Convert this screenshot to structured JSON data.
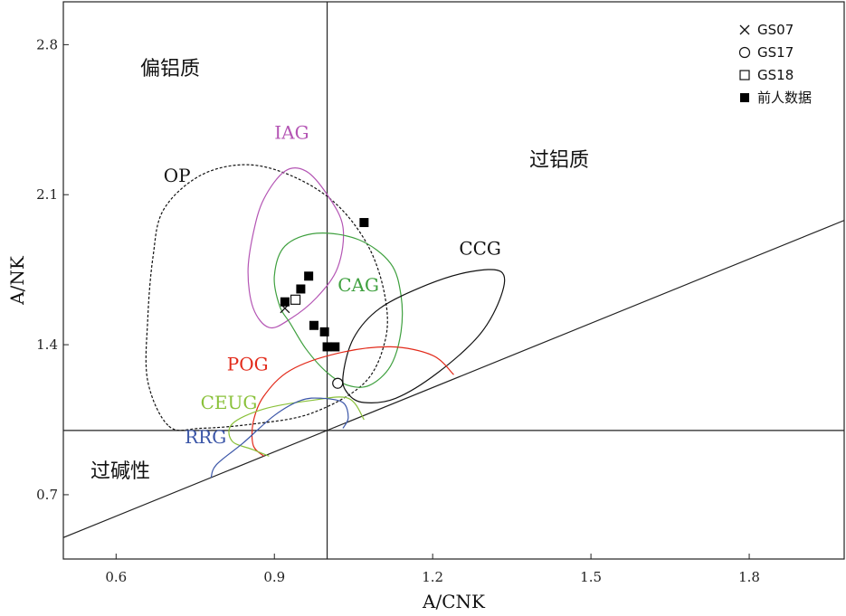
{
  "chart_data": {
    "type": "scatter",
    "title": "",
    "xlabel": "A/CNK",
    "ylabel": "A/NK",
    "xlim": [
      0.5,
      1.98
    ],
    "ylim": [
      0.4,
      3.0
    ],
    "x_ticks": [
      "0.6",
      "0.9",
      "1.2",
      "1.5",
      "1.8"
    ],
    "y_ticks": [
      "0.7",
      "1.4",
      "2.1",
      "2.8"
    ],
    "x_tick_values": [
      0.6,
      0.9,
      1.2,
      1.5,
      1.8
    ],
    "y_tick_values": [
      0.7,
      1.4,
      2.1,
      2.8
    ],
    "regions": {
      "peraluminous": "过铝质",
      "metaluminous": "偏铝质",
      "peralkaline": "过碱性"
    },
    "legend": [
      {
        "marker": "cross",
        "label": "GS07"
      },
      {
        "marker": "open-circle",
        "label": "GS17"
      },
      {
        "marker": "open-square",
        "label": "GS18"
      },
      {
        "marker": "filled-square",
        "label": "前人数据"
      }
    ],
    "samples": [
      {
        "name": "GS07",
        "marker": "cross",
        "x": 0.92,
        "y": 1.57
      },
      {
        "name": "GS17",
        "marker": "open-circle",
        "x": 1.02,
        "y": 1.22
      },
      {
        "name": "GS18",
        "marker": "open-square",
        "x": 0.94,
        "y": 1.61
      },
      {
        "name": "前人数据",
        "marker": "filled-square",
        "points": [
          {
            "x": 0.92,
            "y": 1.6
          },
          {
            "x": 0.95,
            "y": 1.66
          },
          {
            "x": 0.965,
            "y": 1.72
          },
          {
            "x": 0.975,
            "y": 1.49
          },
          {
            "x": 0.995,
            "y": 1.46
          },
          {
            "x": 1.0,
            "y": 1.39
          },
          {
            "x": 1.015,
            "y": 1.39
          },
          {
            "x": 1.07,
            "y": 1.97
          }
        ]
      }
    ],
    "fields": [
      {
        "name": "OP",
        "color": "#111111",
        "dashed": true,
        "outline": [
          [
            0.7,
            1.02
          ],
          [
            0.76,
            1.01
          ],
          [
            0.86,
            1.03
          ],
          [
            0.97,
            1.08
          ],
          [
            1.07,
            1.22
          ],
          [
            1.11,
            1.42
          ],
          [
            1.11,
            1.62
          ],
          [
            1.08,
            1.85
          ],
          [
            1.02,
            2.05
          ],
          [
            0.94,
            2.18
          ],
          [
            0.85,
            2.24
          ],
          [
            0.76,
            2.19
          ],
          [
            0.69,
            2.03
          ],
          [
            0.67,
            1.81
          ],
          [
            0.66,
            1.52
          ],
          [
            0.66,
            1.23
          ]
        ]
      },
      {
        "name": "IAG",
        "color": "#b455b4",
        "dashed": false,
        "outline": [
          [
            0.86,
            1.57
          ],
          [
            0.89,
            1.48
          ],
          [
            0.93,
            1.52
          ],
          [
            0.98,
            1.62
          ],
          [
            1.02,
            1.76
          ],
          [
            1.03,
            1.95
          ],
          [
            1.0,
            2.1
          ],
          [
            0.96,
            2.21
          ],
          [
            0.92,
            2.21
          ],
          [
            0.88,
            2.08
          ],
          [
            0.86,
            1.92
          ],
          [
            0.85,
            1.74
          ]
        ]
      },
      {
        "name": "CAG",
        "color": "#3fa03f",
        "dashed": false,
        "outline": [
          [
            0.93,
            1.5
          ],
          [
            0.96,
            1.38
          ],
          [
            1.0,
            1.27
          ],
          [
            1.04,
            1.21
          ],
          [
            1.08,
            1.21
          ],
          [
            1.12,
            1.3
          ],
          [
            1.14,
            1.46
          ],
          [
            1.14,
            1.63
          ],
          [
            1.12,
            1.78
          ],
          [
            1.06,
            1.89
          ],
          [
            0.98,
            1.92
          ],
          [
            0.92,
            1.86
          ],
          [
            0.9,
            1.72
          ],
          [
            0.91,
            1.58
          ]
        ]
      },
      {
        "name": "CCG",
        "color": "#111111",
        "dashed": false,
        "outline": [
          [
            1.04,
            1.17
          ],
          [
            1.07,
            1.13
          ],
          [
            1.13,
            1.15
          ],
          [
            1.21,
            1.27
          ],
          [
            1.29,
            1.45
          ],
          [
            1.33,
            1.63
          ],
          [
            1.33,
            1.74
          ],
          [
            1.27,
            1.74
          ],
          [
            1.19,
            1.68
          ],
          [
            1.1,
            1.57
          ],
          [
            1.05,
            1.43
          ],
          [
            1.03,
            1.25
          ]
        ]
      },
      {
        "name": "POG",
        "color": "#e22a1a",
        "dashed": false,
        "open": true,
        "outline": [
          [
            0.88,
            0.88
          ],
          [
            0.86,
            0.93
          ],
          [
            0.86,
            1.04
          ],
          [
            0.88,
            1.16
          ],
          [
            0.93,
            1.28
          ],
          [
            1.02,
            1.36
          ],
          [
            1.12,
            1.39
          ],
          [
            1.2,
            1.35
          ],
          [
            1.24,
            1.26
          ]
        ]
      },
      {
        "name": "CEUG",
        "color": "#8ac13a",
        "dashed": false,
        "open": true,
        "outline": [
          [
            0.89,
            0.88
          ],
          [
            0.86,
            0.91
          ],
          [
            0.82,
            0.95
          ],
          [
            0.82,
            1.03
          ],
          [
            0.88,
            1.1
          ],
          [
            0.97,
            1.14
          ],
          [
            1.04,
            1.15
          ],
          [
            1.07,
            1.05
          ]
        ]
      },
      {
        "name": "RRG",
        "color": "#3b56a8",
        "dashed": false,
        "open": true,
        "outline": [
          [
            0.78,
            0.78
          ],
          [
            0.79,
            0.84
          ],
          [
            0.84,
            0.94
          ],
          [
            0.9,
            1.07
          ],
          [
            0.95,
            1.14
          ],
          [
            0.99,
            1.15
          ],
          [
            1.03,
            1.13
          ],
          [
            1.04,
            1.06
          ],
          [
            1.03,
            1.01
          ]
        ]
      }
    ],
    "field_label_positions": {
      "OP": [
        0.69,
        2.16
      ],
      "IAG": [
        0.9,
        2.36
      ],
      "CAG": [
        1.02,
        1.65
      ],
      "CCG": [
        1.25,
        1.82
      ],
      "POG": [
        0.81,
        1.28
      ],
      "CEUG": [
        0.76,
        1.1
      ],
      "RRG": [
        0.73,
        0.94
      ]
    },
    "guide_lines": [
      {
        "type": "vertical",
        "x": 1.0
      },
      {
        "type": "horizontal",
        "y": 1.0
      },
      {
        "type": "diagonal",
        "from": [
          0.5,
          0.5
        ],
        "to": [
          1.98,
          1.98
        ]
      }
    ]
  }
}
